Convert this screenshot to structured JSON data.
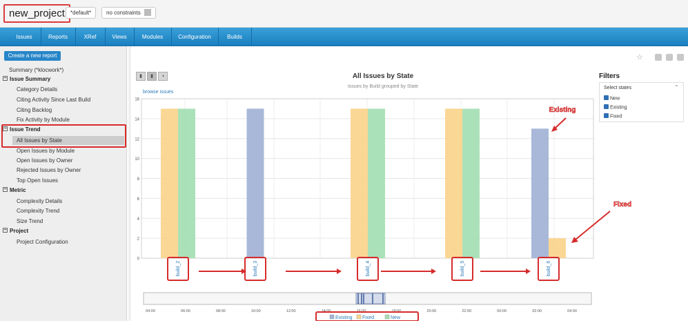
{
  "header": {
    "project_name": "new_project",
    "default_label": "*default*",
    "constraints_label": "no constraints"
  },
  "nav": {
    "tabs": [
      "Issues",
      "Reports",
      "XRef",
      "Views",
      "Modules",
      "Configuration",
      "Builds"
    ]
  },
  "sidebar": {
    "create_button": "Create a new report",
    "summary_link": "Summary (*klocwork*)",
    "groups": [
      {
        "title": "Issue Summary",
        "items": [
          "Category Details",
          "Citing Activity Since Last Build",
          "Citing Backlog",
          "Fix Activity by Module"
        ]
      },
      {
        "title": "Issue Trend",
        "items": [
          "All Issues by State",
          "Open Issues by Module",
          "Open Issues by Owner",
          "Rejected Issues by Owner",
          "Top Open Issues"
        ]
      },
      {
        "title": "Metric",
        "items": [
          "Complexity Details",
          "Complexity Trend",
          "Size Trend"
        ]
      },
      {
        "title": "Project",
        "items": [
          "Project Configuration"
        ]
      }
    ]
  },
  "report": {
    "browse_link": "browse issues"
  },
  "filters": {
    "title": "Filters",
    "select_label": "Select states",
    "states": [
      "New",
      "Existing",
      "Fixed"
    ]
  },
  "annotations": {
    "existing": "Existing",
    "fixed": "Fixed"
  },
  "colors": {
    "Existing": "#a4b4d6",
    "Fixed": "#fbd58f",
    "New": "#a6dfb4",
    "highlight": "#d62b2b",
    "nav": "#2389cc"
  },
  "chart_data": {
    "type": "bar",
    "title": "All Issues by State",
    "subtitle": "Issues by Build grouped by State",
    "categories": [
      "build_2",
      "build_3",
      "build_4",
      "build_5",
      "build_6"
    ],
    "series": [
      {
        "name": "Existing",
        "values": [
          0,
          15,
          0,
          0,
          13
        ]
      },
      {
        "name": "Fixed",
        "values": [
          15,
          0,
          15,
          15,
          2
        ]
      },
      {
        "name": "New",
        "values": [
          15,
          0,
          15,
          15,
          0
        ]
      }
    ],
    "ylim": [
      0,
      16
    ],
    "yticks": [
      0,
      2,
      4,
      6,
      8,
      10,
      12,
      14,
      16
    ],
    "navigator_ticks": [
      "04:00",
      "06:00",
      "08:00",
      "10:00",
      "12:00",
      "14:00",
      "16:00",
      "18:00",
      "20:00",
      "22:00",
      "00:00",
      "02:00",
      "04:00"
    ],
    "legend": [
      "Existing",
      "Fixed",
      "New"
    ],
    "legend_position": "bottom",
    "grid": true
  }
}
